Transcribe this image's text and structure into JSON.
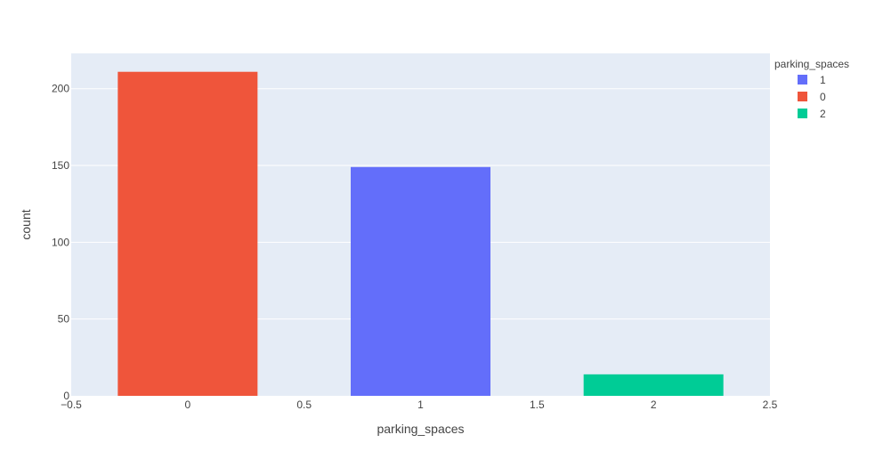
{
  "chart_data": {
    "type": "bar",
    "xlabel": "parking_spaces",
    "ylabel": "count",
    "xlim": [
      -0.5,
      2.5
    ],
    "ylim": [
      0,
      223
    ],
    "x_ticks": [
      -0.5,
      0,
      0.5,
      1,
      1.5,
      2,
      2.5
    ],
    "x_tick_labels": [
      "−0.5",
      "0",
      "0.5",
      "1",
      "1.5",
      "2",
      "2.5"
    ],
    "y_ticks": [
      0,
      50,
      100,
      150,
      200
    ],
    "y_tick_labels": [
      "0",
      "50",
      "100",
      "150",
      "200"
    ],
    "grid": true,
    "bar_width": 0.6,
    "legend": {
      "title": "parking_spaces",
      "placement": "right"
    },
    "series": [
      {
        "name": "1",
        "color": "#636efa",
        "x": [
          1
        ],
        "values": [
          149
        ]
      },
      {
        "name": "0",
        "color": "#ef553b",
        "x": [
          0
        ],
        "values": [
          211
        ]
      },
      {
        "name": "2",
        "color": "#00cc96",
        "x": [
          2
        ],
        "values": [
          14
        ]
      }
    ]
  }
}
